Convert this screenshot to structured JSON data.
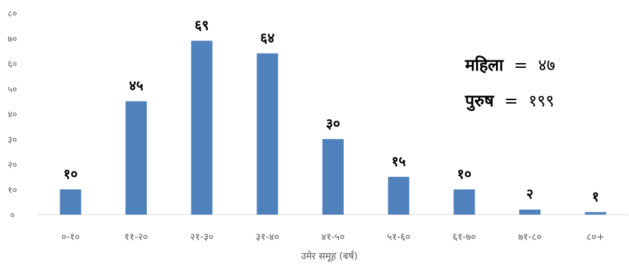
{
  "chart_data": {
    "type": "bar",
    "categories": [
      "०-१०",
      "११-२०",
      "२१-३०",
      "३१-४०",
      "४१-५०",
      "५१-६०",
      "६१-७०",
      "७१-८०",
      "८०+"
    ],
    "values": [
      10,
      45,
      69,
      64,
      30,
      15,
      10,
      2,
      1
    ],
    "value_labels": [
      "१०",
      "४५",
      "६९",
      "६४",
      "३०",
      "१५",
      "१०",
      "२",
      "१"
    ],
    "yticks": [
      0,
      10,
      20,
      30,
      40,
      50,
      60,
      70,
      80
    ],
    "ytick_labels": [
      "०",
      "१०",
      "२०",
      "३०",
      "४०",
      "५०",
      "६०",
      "७०",
      "८०"
    ],
    "ylim": [
      0,
      80
    ],
    "xlabel": "उमेर समूह (बर्ष)",
    "ylabel": "",
    "title": "",
    "grid": false,
    "bar_color": "#4F81BD"
  },
  "annotations": [
    {
      "label": "महिला",
      "value": "४७"
    },
    {
      "label": "पुरुष",
      "value": "१९९"
    }
  ]
}
